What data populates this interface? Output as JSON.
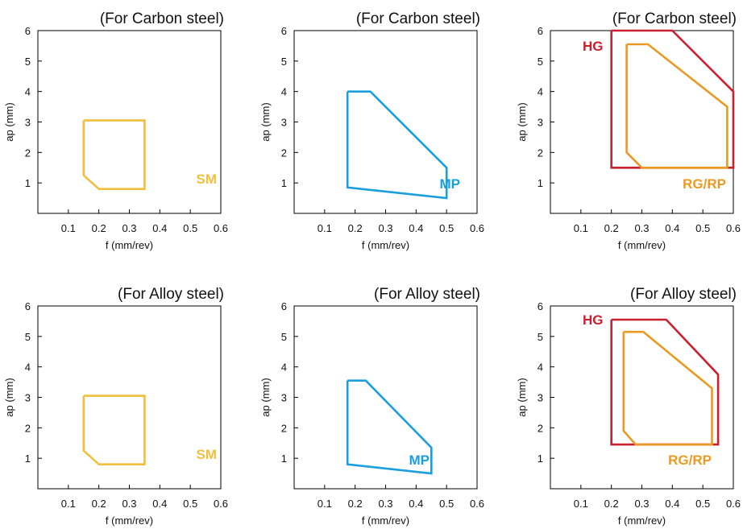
{
  "chart_data": [
    {
      "type": "area",
      "title": "(For Carbon steel)",
      "xlabel": "f (mm/rev)",
      "ylabel": "ap (mm)",
      "xlim": [
        0,
        0.6
      ],
      "ylim": [
        0,
        6
      ],
      "xticks": [
        0.1,
        0.2,
        0.3,
        0.4,
        0.5,
        0.6
      ],
      "yticks": [
        1,
        2,
        3,
        4,
        5,
        6
      ],
      "grid": false,
      "series": [
        {
          "name": "SM",
          "color": "#f2be3c",
          "points": [
            [
              0.15,
              3.05
            ],
            [
              0.35,
              3.05
            ],
            [
              0.35,
              0.8
            ],
            [
              0.2,
              0.8
            ],
            [
              0.15,
              1.25
            ],
            [
              0.15,
              3.05
            ]
          ]
        }
      ]
    },
    {
      "type": "area",
      "title": "(For Carbon steel)",
      "xlabel": "f (mm/rev)",
      "ylabel": "ap (mm)",
      "xlim": [
        0,
        0.6
      ],
      "ylim": [
        0,
        6
      ],
      "xticks": [
        0.1,
        0.2,
        0.3,
        0.4,
        0.5,
        0.6
      ],
      "yticks": [
        1,
        2,
        3,
        4,
        5,
        6
      ],
      "grid": false,
      "series": [
        {
          "name": "MP",
          "color": "#1a9fdc",
          "points": [
            [
              0.175,
              4.0
            ],
            [
              0.25,
              4.0
            ],
            [
              0.5,
              1.5
            ],
            [
              0.5,
              0.5
            ],
            [
              0.175,
              0.85
            ],
            [
              0.175,
              4.0
            ]
          ]
        }
      ]
    },
    {
      "type": "area",
      "title": "(For Carbon steel)",
      "xlabel": "f (mm/rev)",
      "ylabel": "ap (mm)",
      "xlim": [
        0,
        0.6
      ],
      "ylim": [
        0,
        6
      ],
      "xticks": [
        0.1,
        0.2,
        0.3,
        0.4,
        0.5,
        0.6
      ],
      "yticks": [
        1,
        2,
        3,
        4,
        5,
        6
      ],
      "grid": false,
      "series": [
        {
          "name": "HG",
          "color": "#c8202e",
          "points": [
            [
              0.2,
              6.0
            ],
            [
              0.4,
              6.0
            ],
            [
              0.6,
              4.0
            ],
            [
              0.6,
              1.5
            ],
            [
              0.2,
              1.5
            ],
            [
              0.2,
              6.0
            ]
          ]
        },
        {
          "name": "RG/RP",
          "color": "#e99a23",
          "points": [
            [
              0.25,
              5.55
            ],
            [
              0.32,
              5.55
            ],
            [
              0.58,
              3.5
            ],
            [
              0.58,
              1.5
            ],
            [
              0.3,
              1.5
            ],
            [
              0.25,
              2.0
            ],
            [
              0.25,
              5.55
            ]
          ]
        }
      ]
    },
    {
      "type": "area",
      "title": "(For Alloy steel)",
      "xlabel": "f (mm/rev)",
      "ylabel": "ap (mm)",
      "xlim": [
        0,
        0.6
      ],
      "ylim": [
        0,
        6
      ],
      "xticks": [
        0.1,
        0.2,
        0.3,
        0.4,
        0.5,
        0.6
      ],
      "yticks": [
        1,
        2,
        3,
        4,
        5,
        6
      ],
      "grid": false,
      "series": [
        {
          "name": "SM",
          "color": "#f2be3c",
          "points": [
            [
              0.15,
              3.05
            ],
            [
              0.35,
              3.05
            ],
            [
              0.35,
              0.8
            ],
            [
              0.2,
              0.8
            ],
            [
              0.15,
              1.25
            ],
            [
              0.15,
              3.05
            ]
          ]
        }
      ]
    },
    {
      "type": "area",
      "title": "(For Alloy steel)",
      "xlabel": "f (mm/rev)",
      "ylabel": "ap (mm)",
      "xlim": [
        0,
        0.6
      ],
      "ylim": [
        0,
        6
      ],
      "xticks": [
        0.1,
        0.2,
        0.3,
        0.4,
        0.5,
        0.6
      ],
      "yticks": [
        1,
        2,
        3,
        4,
        5,
        6
      ],
      "grid": false,
      "series": [
        {
          "name": "MP",
          "color": "#1a9fdc",
          "points": [
            [
              0.175,
              3.55
            ],
            [
              0.235,
              3.55
            ],
            [
              0.45,
              1.35
            ],
            [
              0.45,
              0.5
            ],
            [
              0.175,
              0.8
            ],
            [
              0.175,
              3.55
            ]
          ]
        }
      ]
    },
    {
      "type": "area",
      "title": "(For Alloy steel)",
      "xlabel": "f (mm/rev)",
      "ylabel": "ap (mm)",
      "xlim": [
        0,
        0.6
      ],
      "ylim": [
        0,
        6
      ],
      "xticks": [
        0.1,
        0.2,
        0.3,
        0.4,
        0.5,
        0.6
      ],
      "yticks": [
        1,
        2,
        3,
        4,
        5,
        6
      ],
      "grid": false,
      "series": [
        {
          "name": "HG",
          "color": "#c8202e",
          "points": [
            [
              0.2,
              5.55
            ],
            [
              0.38,
              5.55
            ],
            [
              0.55,
              3.75
            ],
            [
              0.55,
              1.45
            ],
            [
              0.2,
              1.45
            ],
            [
              0.2,
              5.55
            ]
          ]
        },
        {
          "name": "RG/RP",
          "color": "#e99a23",
          "points": [
            [
              0.24,
              5.15
            ],
            [
              0.305,
              5.15
            ],
            [
              0.53,
              3.3
            ],
            [
              0.53,
              1.45
            ],
            [
              0.28,
              1.45
            ],
            [
              0.24,
              1.9
            ],
            [
              0.24,
              5.15
            ]
          ]
        }
      ]
    }
  ]
}
